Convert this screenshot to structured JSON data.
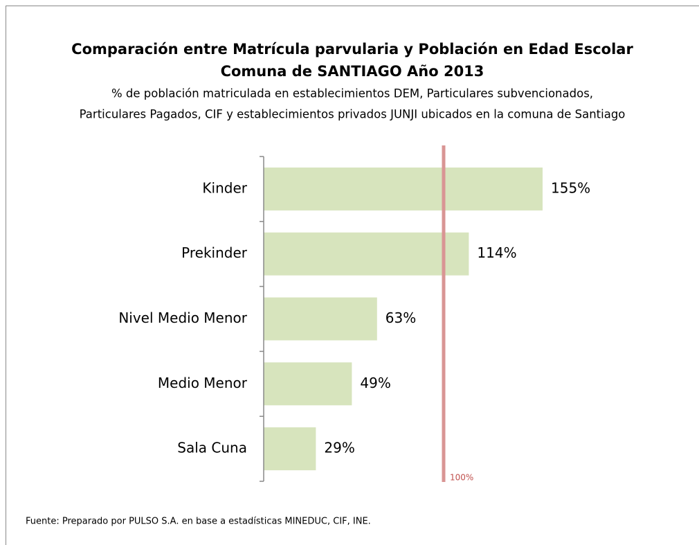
{
  "chart_data": {
    "type": "hbar",
    "title": [
      "Comparación entre Matrícula parvularia y Población en Edad Escolar",
      "Comuna de SANTIAGO Año 2013"
    ],
    "subtitle": [
      "% de población matriculada en establecimientos DEM, Particulares subvencionados,",
      "Particulares Pagados, CIF y establecimientos privados JUNJI ubicados en la comuna de Santiago"
    ],
    "categories": [
      "Kinder",
      "Prekinder",
      "Nivel Medio Menor",
      "Medio Menor",
      "Sala Cuna"
    ],
    "values": [
      155,
      114,
      63,
      49,
      29
    ],
    "value_labels": [
      "155%",
      "114%",
      "63%",
      "49%",
      "29%"
    ],
    "color": "#d7e4bd",
    "xlim": [
      0,
      160
    ],
    "reference_line": {
      "value": 100,
      "label": "100%",
      "color": "#d99594"
    },
    "source": "Fuente: Preparado por PULSO S.A. en base a estadísticas MINEDUC, CIF, INE."
  }
}
